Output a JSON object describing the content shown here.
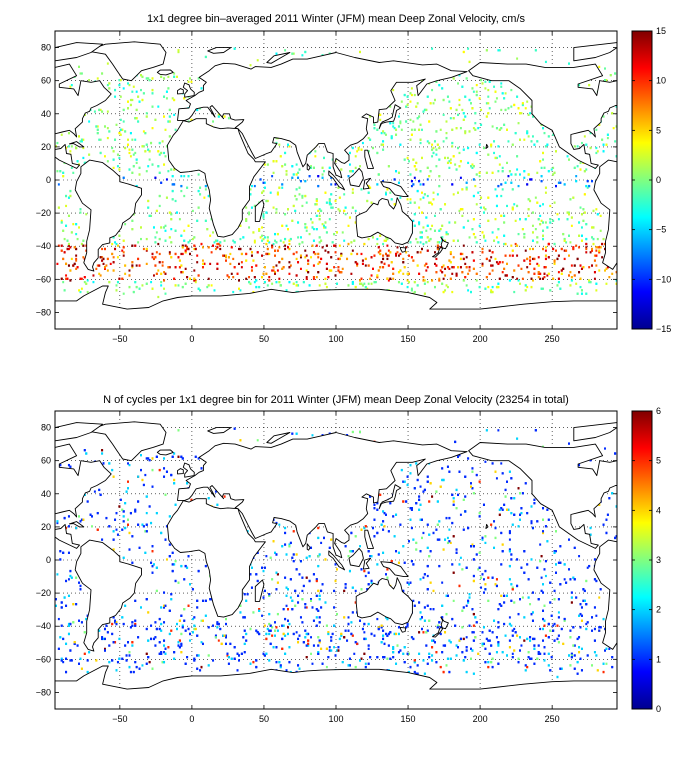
{
  "chart_data": [
    {
      "type": "heatmap",
      "title": "1x1 degree bin–averaged 2011 Winter (JFM) mean Deep Zonal Velocity, cm/s",
      "xlim": [
        -95,
        295
      ],
      "ylim": [
        -90,
        90
      ],
      "xticks": [
        -50,
        0,
        50,
        100,
        150,
        200,
        250
      ],
      "xtick_labels": [
        "−50",
        "0",
        "50",
        "100",
        "150",
        "200",
        "250"
      ],
      "yticks": [
        80,
        60,
        40,
        20,
        0,
        -20,
        -40,
        -60,
        -80
      ],
      "ytick_labels": [
        "80",
        "60",
        "40",
        "20",
        "0",
        "−20",
        "−40",
        "−60",
        "−80"
      ],
      "grid": true,
      "colormap": "jet",
      "colorbar": {
        "range": [
          -15,
          15
        ],
        "ticks": [
          15,
          10,
          5,
          0,
          -5,
          -10,
          -15
        ],
        "tick_labels": [
          "15",
          "10",
          "5",
          "0",
          "−5",
          "−10",
          "−15"
        ]
      },
      "scatter_density": "sparse 1x1 degree bins over ocean; strong eastward (red) velocities concentrated in Southern Ocean band 40S–60S"
    },
    {
      "type": "heatmap",
      "title": "N of cycles per 1x1 degree bin for 2011 Winter (JFM) mean Deep Zonal Velocity (23254 in total)",
      "xlim": [
        -95,
        295
      ],
      "ylim": [
        -90,
        90
      ],
      "xticks": [
        -50,
        0,
        50,
        100,
        150,
        200,
        250
      ],
      "xtick_labels": [
        "−50",
        "0",
        "50",
        "100",
        "150",
        "200",
        "250"
      ],
      "yticks": [
        80,
        60,
        40,
        20,
        0,
        -20,
        -40,
        -60,
        -80
      ],
      "ytick_labels": [
        "80",
        "60",
        "40",
        "20",
        "0",
        "−20",
        "−40",
        "−60",
        "−80"
      ],
      "grid": true,
      "colormap": "jet",
      "colorbar": {
        "range": [
          0,
          6
        ],
        "ticks": [
          6,
          5,
          4,
          3,
          2,
          1,
          0
        ],
        "tick_labels": [
          "6",
          "5",
          "4",
          "3",
          "2",
          "1",
          "0"
        ]
      },
      "total_cycles": 23254
    }
  ]
}
